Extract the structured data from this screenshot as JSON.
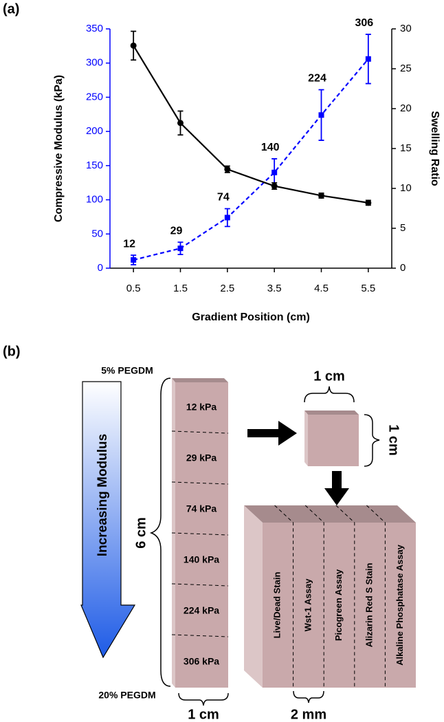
{
  "chart_data": {
    "type": "line",
    "label": "(a)",
    "x_label": "Gradient Position  (cm)",
    "y_label": "Compressive Modulus (kPa)",
    "y2_label": "Swelling Ratio",
    "x": [
      0.5,
      1.5,
      2.5,
      3.5,
      4.5,
      5.5
    ],
    "xlim": [
      0,
      6
    ],
    "xticks": [
      0.5,
      1.5,
      2.5,
      3.5,
      4.5,
      5.5
    ],
    "ylim": [
      0,
      350
    ],
    "yticks": [
      0,
      50,
      100,
      150,
      200,
      250,
      300,
      350
    ],
    "y_color": "#0000ff",
    "y2lim": [
      0,
      30
    ],
    "y2ticks": [
      0,
      5,
      10,
      15,
      20,
      25,
      30
    ],
    "series": [
      {
        "color": "#0000ff",
        "line_style": "dashed",
        "marker": "square",
        "show_labels": true,
        "values": [
          12,
          29,
          74,
          140,
          224,
          306
        ],
        "errors": [
          7,
          9,
          13,
          20,
          37,
          36
        ]
      },
      {
        "color": "#000000",
        "line_style": "solid",
        "marker": "circle",
        "axis": "y2",
        "values": [
          27.9,
          18.2,
          12.4,
          10.3,
          9.1,
          8.2
        ],
        "errors": [
          1.8,
          1.5,
          0.4,
          0.4,
          0.3,
          0.3
        ]
      }
    ]
  },
  "diagram": {
    "label": "(b)",
    "top_label": "5% PEGDM",
    "bottom_label": "20% PEGDM",
    "arrow_label": "Increasing Modulus",
    "height_label": "6 cm",
    "column_width": "1 cm",
    "segments": [
      "12 kPa",
      "29 kPa",
      "74 kPa",
      "140 kPa",
      "224 kPa",
      "306 kPa"
    ],
    "cube_width": "1 cm",
    "cube_height": "1 cm",
    "sections": [
      "Live/Dead Stain",
      "Wst-1 Assay",
      "Picogreen Assay",
      "Alizarin Red S Stain",
      "Alkaline Phosphatase Assay"
    ],
    "section_width": "2 mm"
  }
}
